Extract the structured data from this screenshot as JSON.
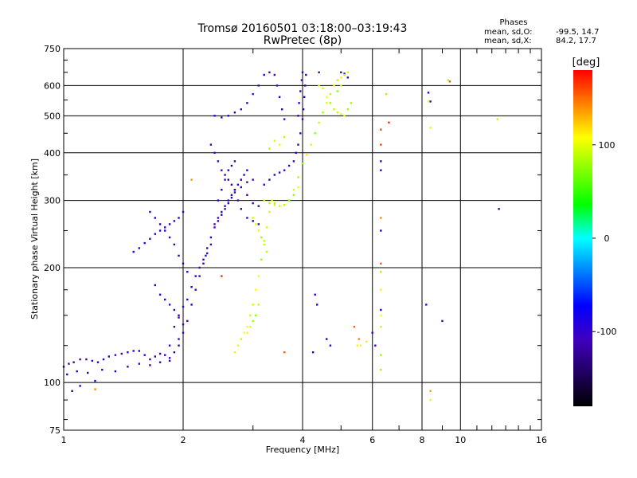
{
  "chart_data": {
    "type": "scatter",
    "title": "Tromsø 20160501 03:18:00–03:19:43",
    "subtitle": "RwPretec (8p)",
    "xlabel": "Frequency [MHz]",
    "ylabel": "Stationary phase Virtual Height [km]",
    "x_scale": "log",
    "y_scale": "log",
    "xlim": [
      1,
      16
    ],
    "ylim": [
      75,
      750
    ],
    "x_ticks": [
      1,
      2,
      4,
      6,
      8,
      10,
      16
    ],
    "x_tick_labels": [
      "1",
      "2",
      "4",
      "6",
      "8",
      "10",
      "16"
    ],
    "y_ticks": [
      75,
      100,
      200,
      300,
      400,
      500,
      600,
      750
    ],
    "y_tick_labels": [
      "75",
      "100",
      "200",
      "300",
      "400",
      "500",
      "600",
      "750"
    ],
    "grid": true,
    "info": {
      "heading": "Phases",
      "o_label": "mean, sd,O:",
      "o_values": "-99.5, 14.7",
      "x_label": "mean, sd,X:",
      "x_values": "84.2, 17.7"
    },
    "colorbar": {
      "label": "[deg]",
      "range": [
        -180,
        180
      ],
      "ticks": [
        100,
        0,
        -100
      ],
      "tick_labels": [
        "100",
        "0",
        "-100"
      ],
      "colors": [
        "#ff0000",
        "#ff8000",
        "#ffff00",
        "#80ff00",
        "#00ff00",
        "#00ffff",
        "#0080ff",
        "#0000ff",
        "#4000c0",
        "#200060",
        "#000000"
      ]
    },
    "series": [
      {
        "mode": "O",
        "phase_deg": -105,
        "points": [
          [
            1.0,
            110
          ],
          [
            1.03,
            112
          ],
          [
            1.06,
            113
          ],
          [
            1.1,
            115
          ],
          [
            1.14,
            115
          ],
          [
            1.18,
            114
          ],
          [
            1.22,
            113
          ],
          [
            1.26,
            115
          ],
          [
            1.3,
            117
          ],
          [
            1.35,
            118
          ],
          [
            1.4,
            119
          ],
          [
            1.45,
            120
          ],
          [
            1.5,
            121
          ],
          [
            1.55,
            121
          ],
          [
            1.6,
            118
          ],
          [
            1.65,
            115
          ],
          [
            1.7,
            117
          ],
          [
            1.75,
            119
          ],
          [
            1.8,
            118
          ],
          [
            1.85,
            116
          ],
          [
            1.9,
            120
          ],
          [
            1.95,
            125
          ],
          [
            1.02,
            105
          ],
          [
            1.08,
            107
          ],
          [
            1.15,
            106
          ],
          [
            1.25,
            108
          ],
          [
            1.35,
            107
          ],
          [
            1.45,
            110
          ],
          [
            1.55,
            112
          ],
          [
            1.65,
            111
          ],
          [
            1.75,
            113
          ],
          [
            1.85,
            114
          ],
          [
            1.05,
            95
          ],
          [
            1.1,
            98
          ],
          [
            1.2,
            101
          ],
          [
            1.85,
            125
          ],
          [
            1.95,
            130
          ],
          [
            2.0,
            135
          ],
          [
            2.05,
            145
          ],
          [
            2.1,
            160
          ],
          [
            2.15,
            175
          ],
          [
            2.2,
            190
          ],
          [
            2.25,
            205
          ],
          [
            2.28,
            215
          ],
          [
            2.3,
            225
          ],
          [
            2.35,
            240
          ],
          [
            2.4,
            255
          ],
          [
            2.45,
            265
          ],
          [
            2.5,
            275
          ],
          [
            2.55,
            285
          ],
          [
            2.6,
            295
          ],
          [
            2.65,
            305
          ],
          [
            2.7,
            315
          ],
          [
            2.8,
            325
          ],
          [
            2.9,
            335
          ],
          [
            3.0,
            340
          ],
          [
            1.9,
            140
          ],
          [
            1.95,
            150
          ],
          [
            2.0,
            158
          ],
          [
            2.05,
            165
          ],
          [
            2.1,
            178
          ],
          [
            2.15,
            190
          ],
          [
            2.2,
            200
          ],
          [
            2.25,
            210
          ],
          [
            2.3,
            218
          ],
          [
            2.35,
            230
          ],
          [
            2.4,
            260
          ],
          [
            2.45,
            270
          ],
          [
            2.5,
            280
          ],
          [
            2.55,
            290
          ],
          [
            2.6,
            300
          ],
          [
            2.65,
            310
          ],
          [
            2.7,
            320
          ],
          [
            2.75,
            330
          ],
          [
            2.8,
            340
          ],
          [
            2.85,
            350
          ],
          [
            2.9,
            360
          ],
          [
            2.45,
            300
          ],
          [
            2.5,
            320
          ],
          [
            2.55,
            340
          ],
          [
            2.6,
            360
          ],
          [
            2.65,
            370
          ],
          [
            2.7,
            380
          ],
          [
            2.8,
            340
          ],
          [
            2.9,
            310
          ],
          [
            3.0,
            295
          ],
          [
            3.1,
            290
          ],
          [
            2.4,
            500
          ],
          [
            2.5,
            495
          ],
          [
            2.6,
            500
          ],
          [
            2.7,
            510
          ],
          [
            2.8,
            520
          ],
          [
            2.9,
            540
          ],
          [
            3.0,
            570
          ],
          [
            3.1,
            600
          ],
          [
            3.2,
            640
          ],
          [
            3.3,
            650
          ],
          [
            1.5,
            220
          ],
          [
            1.55,
            225
          ],
          [
            1.6,
            232
          ],
          [
            1.65,
            238
          ],
          [
            1.7,
            245
          ],
          [
            1.75,
            250
          ],
          [
            1.8,
            255
          ],
          [
            1.85,
            260
          ],
          [
            1.9,
            265
          ],
          [
            1.95,
            270
          ],
          [
            2.0,
            280
          ],
          [
            1.65,
            280
          ],
          [
            1.7,
            270
          ],
          [
            1.75,
            260
          ],
          [
            1.8,
            250
          ],
          [
            1.85,
            240
          ],
          [
            1.9,
            230
          ],
          [
            1.95,
            215
          ],
          [
            2.0,
            205
          ],
          [
            2.05,
            195
          ],
          [
            1.7,
            180
          ],
          [
            1.75,
            170
          ],
          [
            1.8,
            165
          ],
          [
            1.85,
            160
          ],
          [
            1.9,
            155
          ],
          [
            1.95,
            148
          ],
          [
            2.0,
            142
          ],
          [
            2.35,
            420
          ],
          [
            2.4,
            400
          ],
          [
            2.45,
            380
          ],
          [
            2.5,
            360
          ],
          [
            2.55,
            350
          ],
          [
            2.6,
            340
          ],
          [
            2.65,
            330
          ],
          [
            2.7,
            320
          ],
          [
            2.75,
            300
          ],
          [
            2.8,
            285
          ],
          [
            2.9,
            270
          ],
          [
            3.0,
            265
          ],
          [
            3.1,
            260
          ],
          [
            3.2,
            330
          ],
          [
            3.3,
            340
          ],
          [
            3.4,
            350
          ],
          [
            3.5,
            355
          ],
          [
            3.6,
            360
          ],
          [
            3.7,
            370
          ],
          [
            3.8,
            380
          ],
          [
            3.85,
            400
          ],
          [
            3.9,
            420
          ],
          [
            3.95,
            450
          ],
          [
            4.0,
            490
          ],
          [
            4.02,
            520
          ],
          [
            4.04,
            560
          ],
          [
            4.06,
            600
          ],
          [
            4.08,
            640
          ],
          [
            3.9,
            500
          ],
          [
            3.92,
            540
          ],
          [
            3.95,
            580
          ],
          [
            3.98,
            620
          ],
          [
            4.0,
            650
          ],
          [
            3.4,
            640
          ],
          [
            3.45,
            600
          ],
          [
            3.5,
            560
          ],
          [
            3.55,
            520
          ],
          [
            3.6,
            490
          ],
          [
            4.25,
            120
          ],
          [
            4.3,
            170
          ],
          [
            4.35,
            160
          ],
          [
            4.4,
            650
          ],
          [
            4.6,
            130
          ],
          [
            4.7,
            125
          ],
          [
            5.0,
            650
          ],
          [
            5.1,
            645
          ],
          [
            5.2,
            630
          ],
          [
            6.0,
            135
          ],
          [
            6.1,
            125
          ],
          [
            6.3,
            380
          ],
          [
            6.3,
            360
          ],
          [
            6.3,
            250
          ],
          [
            6.3,
            195
          ],
          [
            6.3,
            155
          ],
          [
            8.2,
            160
          ],
          [
            8.3,
            575
          ],
          [
            8.4,
            545
          ],
          [
            9.0,
            145
          ],
          [
            12.5,
            285
          ]
        ]
      },
      {
        "mode": "X",
        "phase_deg": 95,
        "points": [
          [
            2.7,
            120
          ],
          [
            2.75,
            125
          ],
          [
            2.8,
            130
          ],
          [
            2.85,
            135
          ],
          [
            2.9,
            140
          ],
          [
            2.95,
            150
          ],
          [
            3.0,
            160
          ],
          [
            3.05,
            175
          ],
          [
            3.1,
            190
          ],
          [
            3.15,
            210
          ],
          [
            3.2,
            235
          ],
          [
            3.25,
            255
          ],
          [
            3.3,
            280
          ],
          [
            3.35,
            300
          ],
          [
            3.4,
            295
          ],
          [
            3.5,
            290
          ],
          [
            3.6,
            292
          ],
          [
            3.7,
            300
          ],
          [
            3.8,
            320
          ],
          [
            3.9,
            345
          ],
          [
            4.0,
            375
          ],
          [
            4.1,
            395
          ],
          [
            4.2,
            420
          ],
          [
            4.3,
            450
          ],
          [
            4.4,
            480
          ],
          [
            4.5,
            510
          ],
          [
            4.6,
            540
          ],
          [
            4.7,
            570
          ],
          [
            4.8,
            600
          ],
          [
            4.9,
            620
          ],
          [
            5.0,
            630
          ],
          [
            4.4,
            600
          ],
          [
            4.5,
            590
          ],
          [
            4.6,
            560
          ],
          [
            4.7,
            540
          ],
          [
            4.8,
            520
          ],
          [
            4.9,
            510
          ],
          [
            5.0,
            505
          ],
          [
            5.1,
            500
          ],
          [
            5.2,
            520
          ],
          [
            5.3,
            540
          ],
          [
            3.2,
            300
          ],
          [
            3.3,
            295
          ],
          [
            3.4,
            292
          ],
          [
            3.5,
            290
          ],
          [
            3.6,
            292
          ],
          [
            3.7,
            300
          ],
          [
            3.8,
            310
          ],
          [
            3.9,
            325
          ],
          [
            3.0,
            270
          ],
          [
            3.05,
            260
          ],
          [
            3.1,
            250
          ],
          [
            3.15,
            240
          ],
          [
            3.2,
            230
          ],
          [
            3.25,
            220
          ],
          [
            3.1,
            160
          ],
          [
            3.05,
            150
          ],
          [
            3.0,
            145
          ],
          [
            2.95,
            140
          ],
          [
            2.9,
            135
          ],
          [
            4.9,
            580
          ],
          [
            5.0,
            600
          ],
          [
            5.1,
            640
          ],
          [
            5.2,
            650
          ],
          [
            3.6,
            440
          ],
          [
            3.5,
            420
          ],
          [
            3.4,
            430
          ],
          [
            3.3,
            410
          ],
          [
            5.5,
            125
          ],
          [
            5.6,
            125
          ],
          [
            5.8,
            128
          ],
          [
            6.3,
            195
          ],
          [
            6.3,
            175
          ],
          [
            6.3,
            150
          ],
          [
            6.3,
            140
          ],
          [
            6.3,
            118
          ],
          [
            6.3,
            108
          ],
          [
            6.5,
            570
          ],
          [
            8.3,
            545
          ],
          [
            8.4,
            465
          ],
          [
            8.4,
            90
          ],
          [
            9.3,
            620
          ],
          [
            12.4,
            490
          ]
        ]
      },
      {
        "mode": "scattered",
        "phase_deg": 150,
        "points": [
          [
            1.2,
            96
          ],
          [
            2.1,
            340
          ],
          [
            2.5,
            190
          ],
          [
            3.6,
            120
          ],
          [
            6.3,
            420
          ],
          [
            6.3,
            460
          ],
          [
            6.3,
            270
          ],
          [
            6.3,
            205
          ],
          [
            8.4,
            95
          ],
          [
            9.4,
            615
          ],
          [
            6.6,
            480
          ],
          [
            5.4,
            140
          ],
          [
            5.55,
            130
          ]
        ]
      }
    ]
  }
}
